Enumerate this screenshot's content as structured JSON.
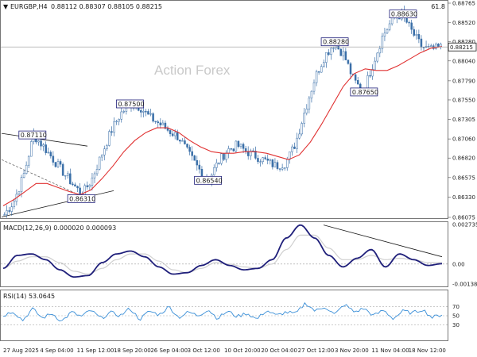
{
  "header": {
    "symbol_label": "EURGBP,H4",
    "ohlc": "0.88112 0.88307 0.88105 0.88215",
    "corner_value": "61.8"
  },
  "watermark": "Action Forex",
  "colors": {
    "candles": "#3a6fa8",
    "ma": "#e03030",
    "macd": "#1f1f7a",
    "signal": "#cfcfcf",
    "rsi": "#3a8fd8",
    "trendline": "#1a1a1a"
  },
  "chart_data": [
    {
      "type": "candlestick",
      "title": "EURGBP,H4",
      "ylim": [
        0.86075,
        0.88765
      ],
      "y_ticks": [
        "0.88765",
        "0.88520",
        "0.88280",
        "0.88040",
        "0.87790",
        "0.87550",
        "0.87305",
        "0.87060",
        "0.86820",
        "0.86575",
        "0.86330",
        "0.86075"
      ],
      "current_price": "0.88215",
      "close_path": [
        0.8611,
        0.8628,
        0.8661,
        0.8711,
        0.8697,
        0.8681,
        0.8665,
        0.865,
        0.8636,
        0.8655,
        0.8686,
        0.8716,
        0.8738,
        0.875,
        0.8746,
        0.8733,
        0.8725,
        0.8716,
        0.8708,
        0.8687,
        0.8669,
        0.8654,
        0.8676,
        0.8692,
        0.8698,
        0.869,
        0.8684,
        0.8678,
        0.8672,
        0.8676,
        0.87,
        0.8742,
        0.8782,
        0.881,
        0.8826,
        0.8812,
        0.878,
        0.8765,
        0.88,
        0.8835,
        0.8856,
        0.8863,
        0.8841,
        0.8822,
        0.8818,
        0.8821
      ],
      "ma_path": [
        0.8622,
        0.863,
        0.864,
        0.865,
        0.865,
        0.8645,
        0.864,
        0.8636,
        0.8642,
        0.8656,
        0.8672,
        0.869,
        0.8704,
        0.8714,
        0.872,
        0.872,
        0.8714,
        0.8704,
        0.8696,
        0.869,
        0.8688,
        0.8688,
        0.869,
        0.869,
        0.8688,
        0.8684,
        0.868,
        0.8686,
        0.8702,
        0.8724,
        0.8748,
        0.8772,
        0.8788,
        0.8794,
        0.8792,
        0.8792,
        0.8798,
        0.8806,
        0.8814,
        0.882,
        0.8822
      ],
      "annotations": [
        {
          "label": "0.87110",
          "value": 0.8711,
          "idx": 3
        },
        {
          "label": "0.86310",
          "value": 0.8631,
          "idx": 8
        },
        {
          "label": "0.87500",
          "value": 0.875,
          "idx": 13
        },
        {
          "label": "0.86540",
          "value": 0.8654,
          "idx": 21
        },
        {
          "label": "0.88280",
          "value": 0.8828,
          "idx": 34
        },
        {
          "label": "0.87650",
          "value": 0.8765,
          "idx": 37
        },
        {
          "label": "0.88630",
          "value": 0.8863,
          "idx": 41
        }
      ]
    },
    {
      "type": "line",
      "title": "MACD(12,26,9) 0.000020 0.000093",
      "ylim": [
        -0.001384,
        0.002735
      ],
      "y_ticks": [
        "0.002735",
        "0.00",
        "-0.001384"
      ],
      "macd_path": [
        -0.0003,
        0.0006,
        0.0007,
        0.0003,
        -0.0004,
        -0.0009,
        -0.0008,
        0.0001,
        0.0007,
        0.0009,
        0.0005,
        -0.0002,
        -0.0007,
        -0.0006,
        -0.0001,
        0.0003,
        -0.0001,
        -0.0004,
        -0.0003,
        0.0003,
        0.0018,
        0.0027,
        0.0018,
        0.0006,
        -0.0002,
        0.0004,
        0.001,
        -0.0002,
        0.0007,
        0.0003,
        -0.0001,
        2e-05
      ],
      "signal_path": [
        -0.0003,
        0.0002,
        0.0005,
        0.0005,
        0.0001,
        -0.0005,
        -0.0007,
        -0.0003,
        0.0003,
        0.0007,
        0.0007,
        0.0002,
        -0.0004,
        -0.0006,
        -0.0003,
        0.0001,
        0.0,
        -0.0002,
        -0.0003,
        0.0,
        0.001,
        0.002,
        0.002,
        0.0011,
        0.0003,
        0.0003,
        0.0006,
        0.0003,
        0.0004,
        0.0003,
        0.0001,
        9.3e-05
      ]
    },
    {
      "type": "line",
      "title": "RSI(14) 53.0645",
      "ylim": [
        0,
        100
      ],
      "y_ticks": [
        "70",
        "50",
        "30"
      ],
      "rsi_path": [
        50,
        60,
        40,
        65,
        45,
        55,
        38,
        58,
        48,
        62,
        44,
        57,
        50,
        66,
        42,
        60,
        52,
        70,
        46,
        58,
        50,
        64,
        44,
        60,
        48,
        56,
        42,
        62,
        50,
        58,
        54,
        78,
        60,
        70,
        52,
        75,
        58,
        66,
        50,
        62,
        44,
        60,
        56,
        64,
        46,
        53
      ]
    }
  ],
  "x_axis": {
    "labels": [
      "27 Aug 2025",
      "4 Sep 04:00",
      "11 Sep 12:00",
      "18 Sep 20:00",
      "26 Sep 04:00",
      "3 Oct 12:00",
      "10 Oct 20:00",
      "20 Oct 04:00",
      "27 Oct 12:00",
      "3 Nov 20:00",
      "11 Nov 04:00",
      "18 Nov 12:00"
    ]
  }
}
